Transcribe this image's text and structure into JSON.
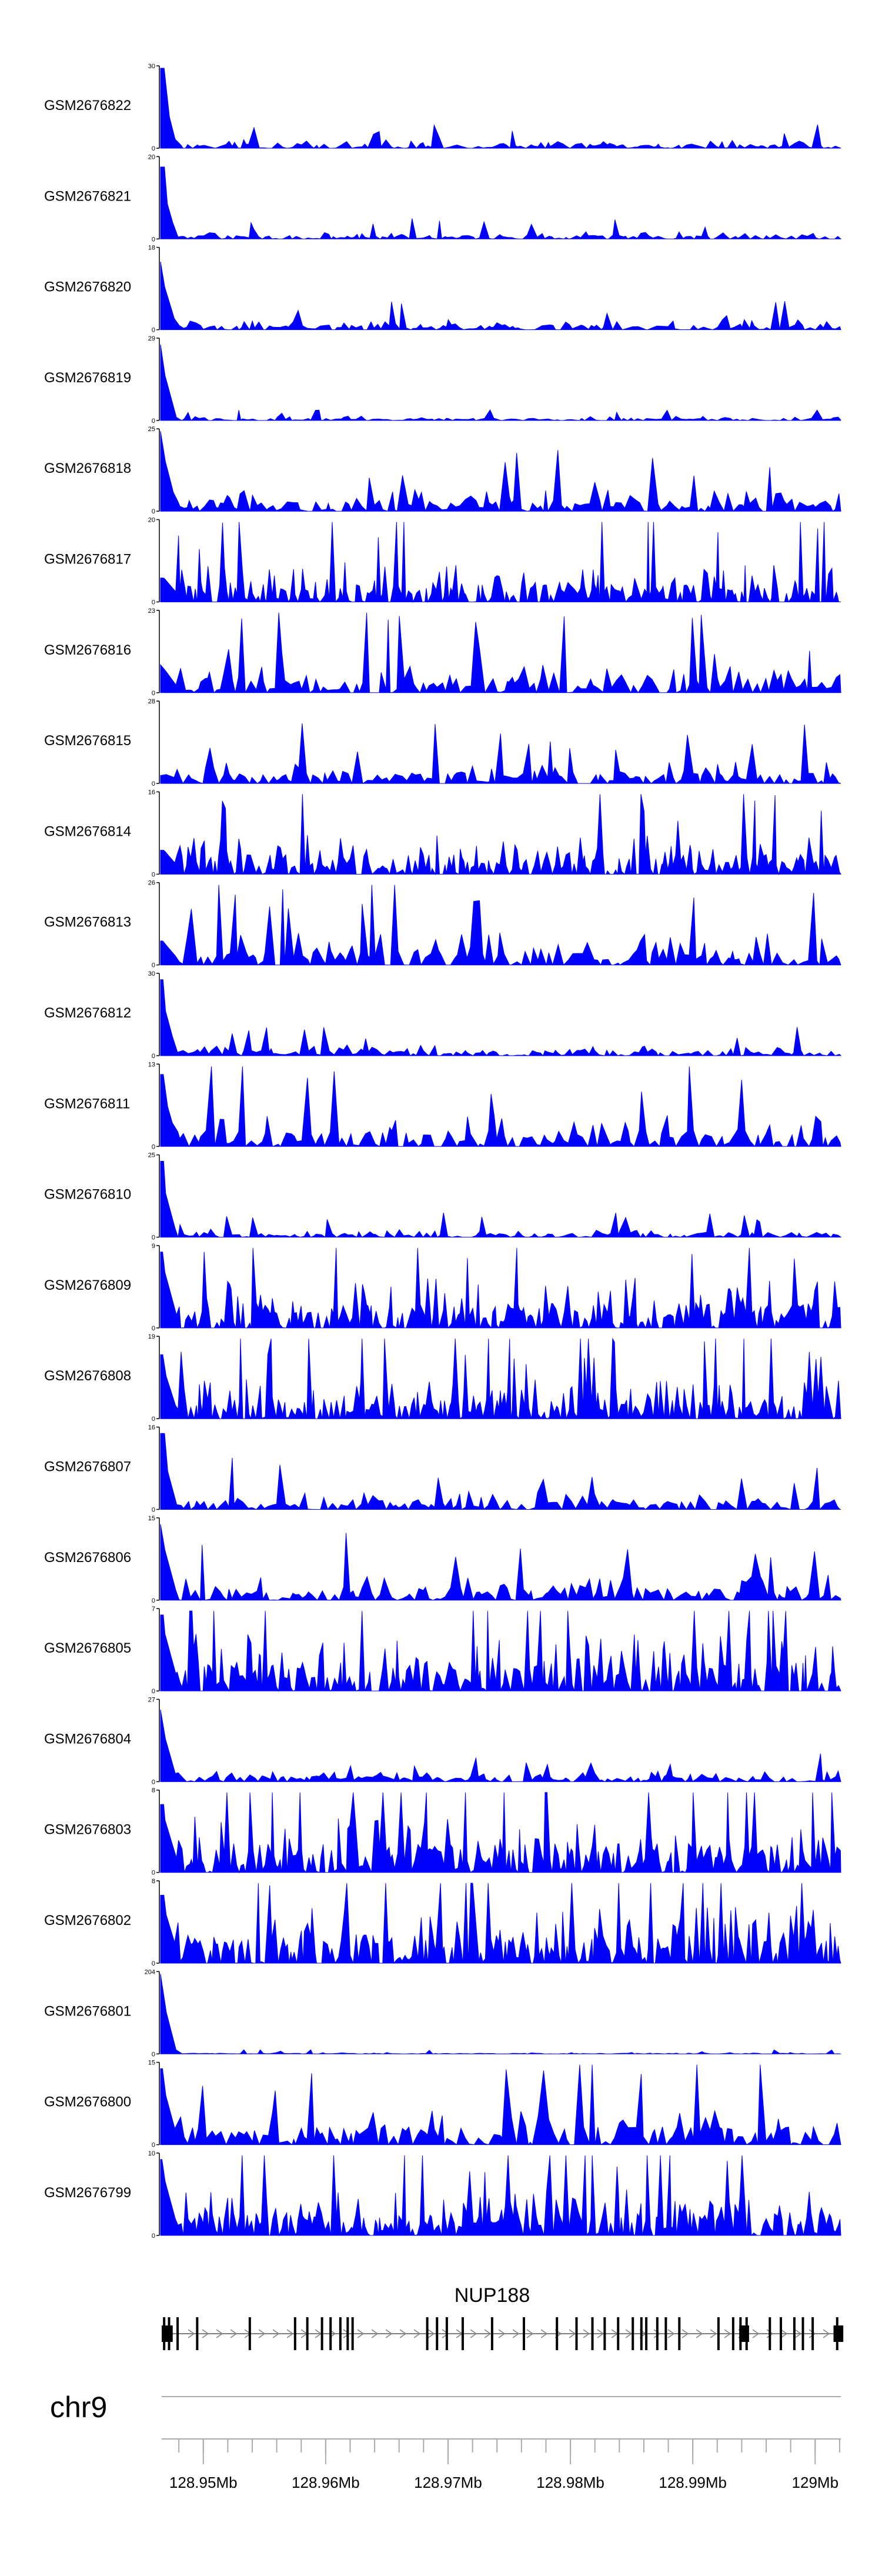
{
  "chart_data": {
    "type": "area",
    "series_color": "#0000ff",
    "tracks": [
      {
        "name": "GSM2676822",
        "ymax": "30",
        "ymin": "0",
        "level": 0.12,
        "spike": 1.0
      },
      {
        "name": "GSM2676821",
        "ymax": "20",
        "ymin": "0",
        "level": 0.1,
        "spike": 0.9
      },
      {
        "name": "GSM2676820",
        "ymax": "18",
        "ymin": "0",
        "level": 0.14,
        "spike": 0.85
      },
      {
        "name": "GSM2676819",
        "ymax": "29",
        "ymin": "0",
        "level": 0.06,
        "spike": 0.95
      },
      {
        "name": "GSM2676818",
        "ymax": "25",
        "ymin": "0",
        "level": 0.3,
        "spike": 1.0
      },
      {
        "name": "GSM2676817",
        "ymax": "20",
        "ymin": "0",
        "level": 0.55,
        "spike": 0.3
      },
      {
        "name": "GSM2676816",
        "ymax": "23",
        "ymin": "0",
        "level": 0.4,
        "spike": 0.35
      },
      {
        "name": "GSM2676815",
        "ymax": "28",
        "ymin": "0",
        "level": 0.3,
        "spike": 0.1
      },
      {
        "name": "GSM2676814",
        "ymax": "16",
        "ymin": "0",
        "level": 0.55,
        "spike": 0.3
      },
      {
        "name": "GSM2676813",
        "ymax": "26",
        "ymin": "0",
        "level": 0.45,
        "spike": 0.3
      },
      {
        "name": "GSM2676812",
        "ymax": "30",
        "ymin": "0",
        "level": 0.15,
        "spike": 0.95
      },
      {
        "name": "GSM2676811",
        "ymax": "13",
        "ymin": "0",
        "level": 0.45,
        "spike": 0.9
      },
      {
        "name": "GSM2676810",
        "ymax": "25",
        "ymin": "0",
        "level": 0.12,
        "spike": 0.95
      },
      {
        "name": "GSM2676809",
        "ymax": "9",
        "ymin": "0",
        "level": 0.7,
        "spike": 0.95
      },
      {
        "name": "GSM2676808",
        "ymax": "19",
        "ymin": "0",
        "level": 0.55,
        "spike": 0.8
      },
      {
        "name": "GSM2676807",
        "ymax": "16",
        "ymin": "0",
        "level": 0.25,
        "spike": 0.95
      },
      {
        "name": "GSM2676806",
        "ymax": "15",
        "ymin": "0",
        "level": 0.35,
        "spike": 0.95
      },
      {
        "name": "GSM2676805",
        "ymax": "7",
        "ymin": "0",
        "level": 0.8,
        "spike": 0.95
      },
      {
        "name": "GSM2676804",
        "ymax": "27",
        "ymin": "0",
        "level": 0.15,
        "spike": 0.9
      },
      {
        "name": "GSM2676803",
        "ymax": "8",
        "ymin": "0",
        "level": 0.8,
        "spike": 0.85
      },
      {
        "name": "GSM2676802",
        "ymax": "8",
        "ymin": "0",
        "level": 0.8,
        "spike": 0.85
      },
      {
        "name": "GSM2676801",
        "ymax": "204",
        "ymin": "0",
        "level": 0.02,
        "spike": 1.0
      },
      {
        "name": "GSM2676800",
        "ymax": "15",
        "ymin": "0",
        "level": 0.5,
        "spike": 0.95
      },
      {
        "name": "GSM2676799",
        "ymax": "10",
        "ymin": "0",
        "level": 0.65,
        "spike": 0.95
      }
    ],
    "gene": {
      "name": "NUP188",
      "exons": [
        128.9468,
        128.9472,
        128.9479,
        128.9495,
        128.9538,
        128.9575,
        128.9585,
        128.9597,
        128.9604,
        128.9612,
        128.9618,
        128.9622,
        128.9683,
        128.9691,
        128.9699,
        128.9712,
        128.9736,
        128.9762,
        128.9789,
        128.9805,
        128.9818,
        128.9828,
        128.9839,
        128.9851,
        128.9858,
        128.9862,
        128.9871,
        128.9878,
        128.9889,
        128.9921,
        128.9933,
        128.9939,
        128.9944,
        128.9963,
        128.9972,
        128.9983,
        128.999,
        128.9998,
        129.0018
      ],
      "utr_blocks": [
        [
          128.9466,
          128.9475
        ],
        [
          128.9938,
          128.9946
        ],
        [
          129.0015,
          129.0023
        ]
      ]
    },
    "axis": {
      "chromosome": "chr9",
      "xlim": [
        128.9466,
        129.0021
      ],
      "major_ticks": [
        128.95,
        128.96,
        128.97,
        128.98,
        128.99,
        129.0
      ],
      "tick_labels": [
        "128.95Mb",
        "128.96Mb",
        "128.97Mb",
        "128.98Mb",
        "128.99Mb",
        "129Mb"
      ],
      "minor_step": 0.002
    }
  }
}
